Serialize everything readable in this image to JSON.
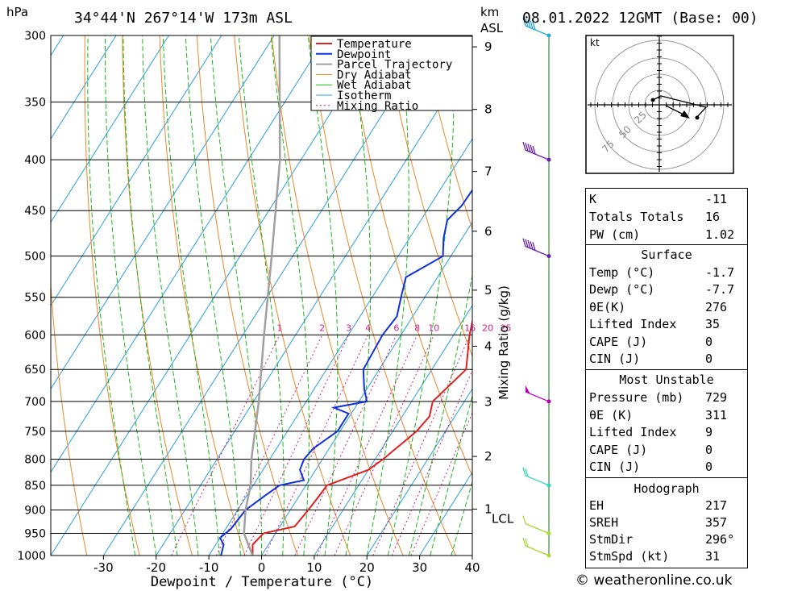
{
  "header": {
    "location": "34°44'N  267°14'W  173m  ASL",
    "datetime": "08.01.2022  12GMT  (Base: 00)",
    "hpa_unit": "hPa",
    "km_unit": "km",
    "asl_unit": "ASL"
  },
  "chart_data": {
    "type": "line",
    "xlabel": "Dewpoint / Temperature (°C)",
    "ylabel_right": "Mixing Ratio (g/kg)",
    "xlim": [
      -40,
      40
    ],
    "ylim": [
      1000,
      300
    ],
    "x_ticks": [
      -30,
      -20,
      -10,
      0,
      10,
      20,
      30,
      40
    ],
    "pressure_levels": [
      300,
      350,
      400,
      450,
      500,
      550,
      600,
      650,
      700,
      750,
      800,
      850,
      900,
      950,
      1000
    ],
    "km_ticks": [
      {
        "label": "1",
        "p": 898
      },
      {
        "label": "2",
        "p": 795
      },
      {
        "label": "3",
        "p": 701
      },
      {
        "label": "4",
        "p": 616
      },
      {
        "label": "5",
        "p": 541
      },
      {
        "label": "6",
        "p": 472
      },
      {
        "label": "7",
        "p": 411
      },
      {
        "label": "8",
        "p": 356
      },
      {
        "label": "9",
        "p": 308
      }
    ],
    "lcl_label": "LCL",
    "lcl_p": 905,
    "mixing_ratio_labels": [
      "1",
      "2",
      "3",
      "4",
      "6",
      "8",
      "10",
      "16",
      "20",
      "25"
    ],
    "legend": [
      "Temperature",
      "Dewpoint",
      "Parcel Trajectory",
      "Dry Adiabat",
      "Wet Adiabat",
      "Isotherm",
      "Mixing Ratio"
    ],
    "series": [
      {
        "name": "Temperature",
        "points": [
          [
            1000,
            -1.7
          ],
          [
            975,
            -3.0
          ],
          [
            950,
            -2.3
          ],
          [
            935,
            2.8
          ],
          [
            900,
            3.4
          ],
          [
            870,
            3.8
          ],
          [
            850,
            4.0
          ],
          [
            840,
            6.0
          ],
          [
            820,
            10.0
          ],
          [
            800,
            11.5
          ],
          [
            775,
            13.0
          ],
          [
            750,
            14.5
          ],
          [
            725,
            15.2
          ],
          [
            700,
            14.0
          ],
          [
            650,
            16.5
          ],
          [
            600,
            13.0
          ],
          [
            550,
            10.0
          ],
          [
            500,
            7.5
          ],
          [
            450,
            5.0
          ],
          [
            400,
            0.0
          ],
          [
            350,
            -6.0
          ],
          [
            300,
            -15.0
          ]
        ]
      },
      {
        "name": "Dewpoint",
        "points": [
          [
            1000,
            -7.7
          ],
          [
            975,
            -8.5
          ],
          [
            960,
            -10.0
          ],
          [
            940,
            -9.0
          ],
          [
            900,
            -8.5
          ],
          [
            870,
            -6.5
          ],
          [
            850,
            -5.0
          ],
          [
            840,
            -1.0
          ],
          [
            820,
            -3.0
          ],
          [
            800,
            -3.5
          ],
          [
            780,
            -3.0
          ],
          [
            750,
            -0.5
          ],
          [
            720,
            -0.5
          ],
          [
            710,
            -4.0
          ],
          [
            700,
            1.5
          ],
          [
            680,
            -0.5
          ],
          [
            650,
            -3.0
          ],
          [
            600,
            -3.5
          ],
          [
            575,
            -3.0
          ],
          [
            550,
            -4.5
          ],
          [
            525,
            -6.0
          ],
          [
            500,
            -1.5
          ],
          [
            480,
            -3.5
          ],
          [
            460,
            -5.0
          ],
          [
            445,
            -4.0
          ],
          [
            400,
            -3.5
          ],
          [
            385,
            -5.5
          ],
          [
            350,
            -3.5
          ],
          [
            320,
            -7.5
          ],
          [
            310,
            -10.0
          ],
          [
            300,
            -25.0
          ]
        ]
      },
      {
        "name": "Parcel Trajectory",
        "points": [
          [
            1000,
            -1.7
          ],
          [
            950,
            -6.0
          ],
          [
            900,
            -8.5
          ],
          [
            850,
            -10.5
          ],
          [
            800,
            -13.5
          ],
          [
            700,
            -19.0
          ],
          [
            600,
            -26.0
          ],
          [
            500,
            -34.0
          ],
          [
            400,
            -44.0
          ],
          [
            300,
            -59.0
          ]
        ]
      }
    ],
    "wind_barbs": [
      {
        "p": 1000,
        "speed": 20,
        "color": "#a3d930"
      },
      {
        "p": 950,
        "speed": 10,
        "color": "#a3d930"
      },
      {
        "p": 850,
        "speed": 15,
        "color": "#2bd8b0"
      },
      {
        "p": 700,
        "speed": 50,
        "color": "#b800b8"
      },
      {
        "p": 500,
        "speed": 45,
        "color": "#6a1fb0"
      },
      {
        "p": 400,
        "speed": 45,
        "color": "#6a1fb0"
      },
      {
        "p": 300,
        "speed": 45,
        "color": "#2aa8d8"
      }
    ],
    "colors": {
      "temperature": "#e02020",
      "dewpoint": "#1030e0",
      "parcel": "#a0a0a0",
      "dry": "#e8882a",
      "wet": "#1cb81c",
      "iso": "#2aa0e0",
      "mix": "#d0208a"
    }
  },
  "hodograph": {
    "unit": "kt",
    "ring_labels": [
      "25",
      "50",
      "75"
    ]
  },
  "indices": [
    {
      "label": "K",
      "value": "-11"
    },
    {
      "label": "Totals Totals",
      "value": "16"
    },
    {
      "label": "PW (cm)",
      "value": "1.02"
    }
  ],
  "surface": {
    "title": "Surface",
    "rows": [
      {
        "label": "Temp (°C)",
        "value": "-1.7"
      },
      {
        "label": "Dewp (°C)",
        "value": "-7.7"
      },
      {
        "label": "θE(K)",
        "value": "276"
      },
      {
        "label": "Lifted Index",
        "value": "35"
      },
      {
        "label": "CAPE (J)",
        "value": "0"
      },
      {
        "label": "CIN (J)",
        "value": "0"
      }
    ]
  },
  "most_unstable": {
    "title": "Most Unstable",
    "rows": [
      {
        "label": "Pressure (mb)",
        "value": "729"
      },
      {
        "label": "θE (K)",
        "value": "311"
      },
      {
        "label": "Lifted Index",
        "value": "9"
      },
      {
        "label": "CAPE (J)",
        "value": "0"
      },
      {
        "label": "CIN (J)",
        "value": "0"
      }
    ]
  },
  "hodograph_table": {
    "title": "Hodograph",
    "rows": [
      {
        "label": "EH",
        "value": "217"
      },
      {
        "label": "SREH",
        "value": "357"
      },
      {
        "label": "StmDir",
        "value": "296°"
      },
      {
        "label": "StmSpd (kt)",
        "value": "31"
      }
    ]
  },
  "credit": "© weatheronline.co.uk"
}
